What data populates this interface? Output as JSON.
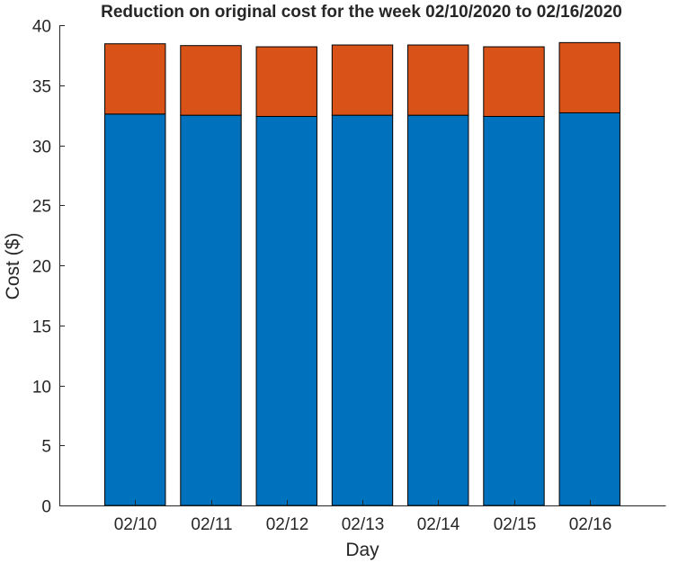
{
  "chart_data": {
    "type": "bar",
    "stacked": true,
    "title": "Reduction on original cost for the week 02/10/2020 to 02/16/2020",
    "xlabel": "Day",
    "ylabel": "Cost ($)",
    "categories": [
      "02/10",
      "02/11",
      "02/12",
      "02/13",
      "02/14",
      "02/15",
      "02/16"
    ],
    "series": [
      {
        "values": [
          32.6,
          32.5,
          32.4,
          32.5,
          32.5,
          32.4,
          32.7
        ],
        "color": "#0072BD"
      },
      {
        "values": [
          5.85,
          5.8,
          5.8,
          5.85,
          5.85,
          5.8,
          5.85
        ],
        "color": "#D95319"
      }
    ],
    "ylim": [
      0,
      40
    ],
    "yticks": [
      0,
      5,
      10,
      15,
      20,
      25,
      30,
      35,
      40
    ],
    "grid": false,
    "legend": "none"
  }
}
